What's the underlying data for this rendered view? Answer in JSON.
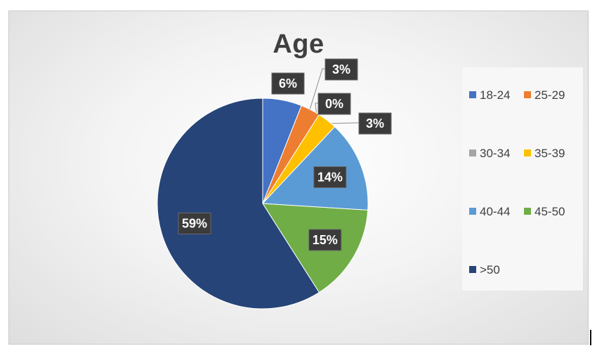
{
  "chart_data": {
    "type": "pie",
    "title": "Age",
    "categories": [
      "18-24",
      "25-29",
      "30-34",
      "35-39",
      "40-44",
      "45-50",
      ">50"
    ],
    "values": [
      6,
      3,
      0,
      3,
      14,
      15,
      59
    ],
    "data_labels": [
      "6%",
      "3%",
      "0%",
      "3%",
      "14%",
      "15%",
      "59%"
    ],
    "colors": [
      "#4472C4",
      "#ED7D31",
      "#A5A5A5",
      "#FFC000",
      "#5B9BD5",
      "#70AD47",
      "#264478"
    ],
    "legend_position": "right",
    "start_angle_deg": 0,
    "direction": "clockwise"
  }
}
